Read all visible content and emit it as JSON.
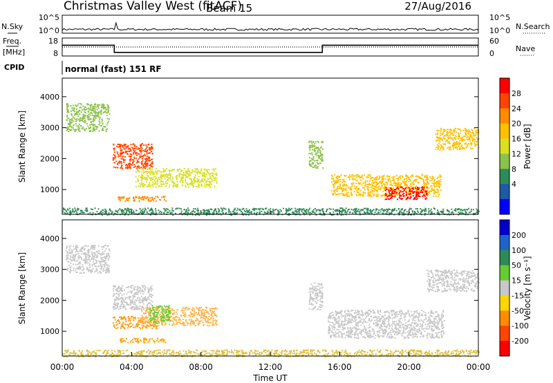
{
  "header": {
    "title": "Christmas Valley West (fitACF)",
    "beam": "Beam 15",
    "date": "27/Aug/2016"
  },
  "chart_data": [
    {
      "type": "line",
      "name": "noise-panel",
      "left_label": "N.Sky",
      "right_label": "N.Search",
      "left_ticks": [
        "10^5",
        "10^0"
      ],
      "right_ticks": [
        "10^5",
        "10^0"
      ],
      "solid_series_hint": "N.Sky",
      "dotted_series_hint": "N.Search"
    },
    {
      "type": "line",
      "name": "freq-panel",
      "left_label_line1": "Freq.",
      "left_label_line2": "[MHz]",
      "left_ticks": [
        "18",
        "8"
      ],
      "right_label": "Nave",
      "right_ticks": [
        "60",
        "0"
      ],
      "freq_steps": [
        {
          "t": 0.0,
          "v": 14
        },
        {
          "t": 3.0,
          "v": 14
        },
        {
          "t": 3.0,
          "v": 10
        },
        {
          "t": 15.0,
          "v": 10
        },
        {
          "t": 15.0,
          "v": 14
        },
        {
          "t": 24.0,
          "v": 14
        }
      ],
      "nave_level": 30
    },
    {
      "type": "table",
      "name": "cpid-panel",
      "label": "CPID",
      "value": "normal (fast) 151 RF"
    },
    {
      "type": "heatmap",
      "name": "power-panel",
      "ylabel": "Slant Range [km]",
      "yticks": [
        "1000",
        "2000",
        "3000",
        "4000"
      ],
      "ylim": [
        200,
        4600
      ],
      "xlim": [
        0,
        24
      ],
      "colorbar_label": "Power [dB]",
      "colorbar_ticks": [
        "28",
        "24",
        "20",
        "16",
        "12",
        "8",
        "4"
      ],
      "colorbar_colors": [
        "#ff0000",
        "#ff4500",
        "#ff8c00",
        "#ffc000",
        "#d9e021",
        "#8bc34a",
        "#2e8b57",
        "#1e5aa8",
        "#0000ff"
      ],
      "regions": [
        {
          "t0": 0.2,
          "t1": 2.7,
          "r0": 2900,
          "r1": 3800,
          "level": 3
        },
        {
          "t0": 2.9,
          "t1": 5.2,
          "r0": 1700,
          "r1": 2500,
          "level": 7
        },
        {
          "t0": 4.2,
          "t1": 8.9,
          "r0": 1100,
          "r1": 1700,
          "level": 4
        },
        {
          "t0": 3.2,
          "t1": 6.0,
          "r0": 640,
          "r1": 800,
          "level": 6
        },
        {
          "t0": 14.2,
          "t1": 15.0,
          "r0": 1700,
          "r1": 2600,
          "level": 3
        },
        {
          "t0": 15.5,
          "t1": 21.8,
          "r0": 800,
          "r1": 1500,
          "level": 5
        },
        {
          "t0": 18.6,
          "t1": 21.0,
          "r0": 700,
          "r1": 1100,
          "level": 8
        },
        {
          "t0": 21.5,
          "t1": 24.0,
          "r0": 2300,
          "r1": 3000,
          "level": 5
        },
        {
          "t0": 0.0,
          "t1": 24.0,
          "r0": 200,
          "r1": 420,
          "level": 2
        }
      ]
    },
    {
      "type": "heatmap",
      "name": "velocity-panel",
      "ylabel": "Slant Range [km]",
      "yticks": [
        "1000",
        "2000",
        "3000",
        "4000"
      ],
      "ylim": [
        200,
        4600
      ],
      "xlim": [
        0,
        24
      ],
      "xlabel": "Time UT",
      "xticks": [
        "00:00",
        "04:00",
        "08:00",
        "12:00",
        "16:00",
        "20:00",
        "00:00"
      ],
      "colorbar_label": "Velocity [m s⁻¹]",
      "colorbar_ticks": [
        "200",
        "100",
        "50",
        "15",
        "-15",
        "-50",
        "-100",
        "-200"
      ],
      "colorbar_colors": [
        "#0000cc",
        "#1e64c8",
        "#2e8b57",
        "#66cc33",
        "#c8c8c8",
        "#ffd700",
        "#ff8c00",
        "#ff4500",
        "#ff0000"
      ],
      "regions": [
        {
          "t0": 0.2,
          "t1": 2.7,
          "r0": 2900,
          "r1": 3800,
          "color": "#c8c8c8"
        },
        {
          "t0": 2.9,
          "t1": 5.2,
          "r0": 1700,
          "r1": 2500,
          "color": "#c8c8c8"
        },
        {
          "t0": 2.9,
          "t1": 5.5,
          "r0": 1100,
          "r1": 1500,
          "color": "#ff9f1a"
        },
        {
          "t0": 4.5,
          "t1": 8.9,
          "r0": 1200,
          "r1": 1800,
          "color": "#ffb347"
        },
        {
          "t0": 5.0,
          "t1": 6.2,
          "r0": 1300,
          "r1": 1850,
          "color": "#66cc33"
        },
        {
          "t0": 3.3,
          "t1": 6.0,
          "r0": 650,
          "r1": 800,
          "color": "#ffa500"
        },
        {
          "t0": 14.2,
          "t1": 15.0,
          "r0": 1700,
          "r1": 2600,
          "color": "#c8c8c8"
        },
        {
          "t0": 15.3,
          "t1": 22.0,
          "r0": 800,
          "r1": 1700,
          "color": "#c8c8c8"
        },
        {
          "t0": 21.0,
          "t1": 24.0,
          "r0": 2300,
          "r1": 3000,
          "color": "#c8c8c8"
        },
        {
          "t0": 0.0,
          "t1": 24.0,
          "r0": 200,
          "r1": 420,
          "color": "#e0c040"
        }
      ]
    }
  ]
}
